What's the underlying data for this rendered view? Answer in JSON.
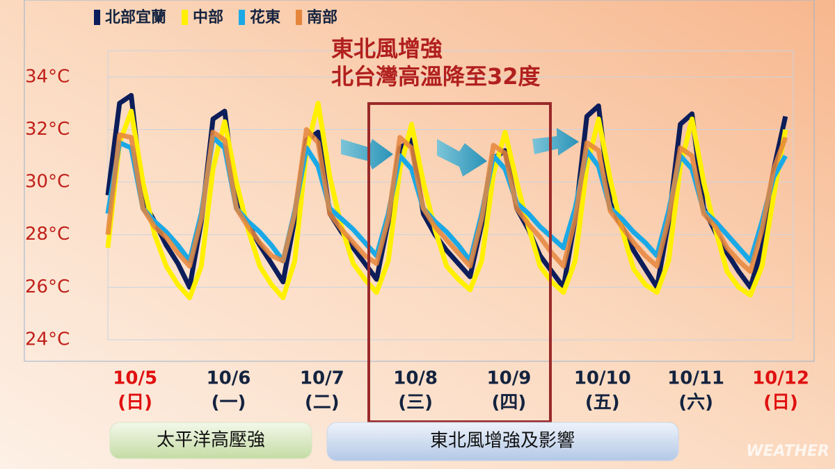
{
  "chart_data": {
    "type": "line",
    "xlim": [
      9,
      185
    ],
    "ylim": [
      24,
      35
    ],
    "yticks": [
      {
        "value": 24,
        "label": "24°C"
      },
      {
        "value": 26,
        "label": "26°C"
      },
      {
        "value": 28,
        "label": "28°C"
      },
      {
        "value": 30,
        "label": "30°C"
      },
      {
        "value": 32,
        "label": "32°C"
      },
      {
        "value": 34,
        "label": "34°C"
      }
    ],
    "xticks": [
      {
        "value": 16,
        "label": "10/5"
      },
      {
        "value": 40,
        "label": "10/6"
      },
      {
        "value": 64,
        "label": "10/7"
      },
      {
        "value": 88,
        "label": "10/8"
      },
      {
        "value": 112,
        "label": "10/9"
      },
      {
        "value": 136,
        "label": "10/10"
      },
      {
        "value": 160,
        "label": "10/11"
      },
      {
        "value": 184,
        "label": "10/12"
      }
    ],
    "xtick_sublabels": [
      "(日)",
      "(一)",
      "(二)",
      "(三)",
      "(四)",
      "(五)",
      "(六)",
      "(日)"
    ],
    "xtick_label_colors": [
      "#e01010",
      "#14233f",
      "#14233f",
      "#14233f",
      "#14233f",
      "#14233f",
      "#14233f",
      "#e01010"
    ],
    "grid": true,
    "legend": "top",
    "x": [
      9,
      12,
      15,
      18,
      21,
      24,
      27,
      30,
      33,
      36,
      39,
      42,
      45,
      48,
      51,
      54,
      57,
      60,
      63,
      66,
      69,
      72,
      75,
      78,
      81,
      84,
      87,
      90,
      93,
      96,
      99,
      102,
      105,
      108,
      111,
      114,
      117,
      120,
      123,
      126,
      129,
      132,
      135,
      138,
      141,
      144,
      147,
      150,
      153,
      156,
      159,
      162,
      165,
      168,
      171,
      174,
      177,
      180,
      183
    ],
    "series": [
      {
        "name": "北部宜蘭",
        "color": "#0c1d5a",
        "values": [
          29.5,
          33.0,
          33.3,
          29.3,
          28.5,
          27.6,
          26.9,
          26.0,
          28.5,
          32.4,
          32.7,
          29.2,
          28.4,
          27.6,
          26.9,
          26.2,
          28.6,
          31.6,
          31.9,
          28.8,
          28.1,
          27.5,
          26.9,
          26.3,
          28.5,
          31.3,
          31.6,
          28.8,
          28.0,
          27.4,
          26.9,
          26.4,
          28.4,
          30.9,
          31.2,
          29.0,
          28.2,
          27.2,
          26.6,
          26.0,
          28.6,
          32.5,
          32.9,
          29.2,
          28.3,
          27.4,
          26.7,
          26.0,
          28.5,
          32.2,
          32.6,
          29.0,
          28.1,
          27.3,
          26.6,
          26.0,
          27.5,
          30.5,
          32.5
        ]
      },
      {
        "name": "中部",
        "color": "#fff000",
        "values": [
          27.5,
          31.5,
          32.7,
          30.0,
          28.0,
          26.8,
          26.1,
          25.6,
          26.8,
          30.5,
          32.3,
          30.0,
          28.2,
          26.8,
          26.1,
          25.6,
          27.0,
          31.2,
          33.0,
          30.2,
          28.3,
          26.9,
          26.3,
          25.8,
          27.0,
          30.5,
          32.2,
          30.0,
          28.2,
          26.8,
          26.3,
          25.9,
          27.0,
          30.3,
          31.9,
          30.0,
          28.3,
          26.8,
          26.2,
          25.8,
          27.0,
          30.6,
          32.4,
          30.1,
          28.2,
          26.7,
          26.1,
          25.8,
          27.0,
          30.6,
          32.4,
          30.0,
          28.2,
          26.6,
          26.0,
          25.7,
          26.8,
          29.5,
          32.0
        ]
      },
      {
        "name": "花東",
        "color": "#1aa9e6",
        "values": [
          28.8,
          31.5,
          31.3,
          29.0,
          28.5,
          28.1,
          27.6,
          27.0,
          28.8,
          31.7,
          31.3,
          29.0,
          28.5,
          28.1,
          27.6,
          27.0,
          28.9,
          31.3,
          30.6,
          29.0,
          28.6,
          28.2,
          27.7,
          27.2,
          28.8,
          31.0,
          30.5,
          29.0,
          28.5,
          28.1,
          27.6,
          27.0,
          28.8,
          31.0,
          30.5,
          29.2,
          28.8,
          28.3,
          27.9,
          27.5,
          29.0,
          31.2,
          30.6,
          29.0,
          28.6,
          28.1,
          27.7,
          27.2,
          28.9,
          31.0,
          30.5,
          28.9,
          28.5,
          28.0,
          27.5,
          27.0,
          28.5,
          30.2,
          31.0
        ]
      },
      {
        "name": "南部",
        "color": "#e5853c",
        "values": [
          28.0,
          31.8,
          31.7,
          29.0,
          28.3,
          27.9,
          27.3,
          26.8,
          28.6,
          31.9,
          31.6,
          29.0,
          28.3,
          27.7,
          27.2,
          27.0,
          28.8,
          32.0,
          31.5,
          28.8,
          28.2,
          27.7,
          27.2,
          26.9,
          28.6,
          31.7,
          31.3,
          29.0,
          28.3,
          27.8,
          27.3,
          26.8,
          28.6,
          31.4,
          31.1,
          29.0,
          28.4,
          27.9,
          27.3,
          26.8,
          28.6,
          31.5,
          31.2,
          28.9,
          28.3,
          27.7,
          27.2,
          26.8,
          28.6,
          31.3,
          31.0,
          28.8,
          28.3,
          27.5,
          27.0,
          26.6,
          28.2,
          30.5,
          31.7
        ]
      }
    ],
    "annotations": [
      "東北風增強",
      "北台灣高溫降至32度"
    ],
    "phases": [
      "太平洋高壓強",
      "東北風增強及影響"
    ],
    "watermark": "WEATHER"
  }
}
